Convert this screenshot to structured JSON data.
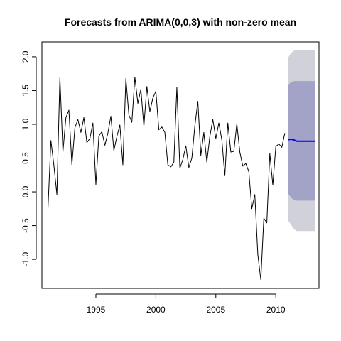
{
  "chart_data": {
    "type": "line",
    "title": "Forecasts from ARIMA(0,0,3) with non-zero mean",
    "xlabel": "",
    "ylabel": "",
    "xlim": [
      1990.5,
      2013.6
    ],
    "ylim": [
      -1.43,
      2.22
    ],
    "x_ticks": [
      1995,
      2000,
      2005,
      2010
    ],
    "y_ticks": [
      -1.0,
      -0.5,
      0.0,
      0.5,
      1.0,
      1.5,
      2.0
    ],
    "x_tick_labels": [
      "1995",
      "2000",
      "2005",
      "2010"
    ],
    "y_tick_labels": [
      "-1.0",
      "-0.5",
      "0.0",
      "0.5",
      "1.0",
      "1.5",
      "2.0"
    ],
    "series": [
      {
        "role": "observed",
        "color": "#000000",
        "start": 1991.0,
        "step": 0.25,
        "values": [
          -0.27,
          0.76,
          0.39,
          -0.04,
          1.7,
          0.59,
          1.1,
          1.21,
          0.4,
          0.95,
          1.07,
          0.88,
          1.1,
          0.73,
          0.79,
          1.02,
          0.11,
          0.83,
          0.89,
          0.69,
          0.87,
          1.12,
          0.61,
          0.82,
          0.99,
          0.4,
          1.68,
          1.14,
          1.03,
          1.7,
          1.31,
          1.52,
          0.97,
          1.56,
          1.19,
          1.39,
          1.49,
          0.92,
          0.96,
          0.88,
          0.4,
          0.37,
          0.44,
          1.55,
          0.35,
          0.48,
          0.68,
          0.36,
          0.5,
          0.98,
          1.34,
          0.54,
          0.88,
          0.44,
          0.82,
          1.07,
          0.79,
          1.02,
          0.77,
          0.24,
          1.02,
          0.59,
          0.6,
          1.01,
          0.59,
          0.38,
          0.42,
          0.3,
          -0.25,
          -0.04,
          -0.93,
          -1.3,
          -0.39,
          -0.46,
          0.57,
          0.1,
          0.67,
          0.71,
          0.66,
          0.87
        ]
      },
      {
        "role": "forecast",
        "color": "#0000ff",
        "x": [
          2011.0,
          2011.25,
          2011.5,
          2011.75,
          2012.0,
          2012.25,
          2012.5,
          2012.75,
          2013.0,
          2013.25
        ],
        "values": [
          0.77,
          0.78,
          0.77,
          0.75,
          0.75,
          0.75,
          0.75,
          0.75,
          0.75,
          0.75
        ]
      }
    ],
    "intervals": [
      {
        "level": "95%",
        "color": "#d1d1d9",
        "x": [
          2011.0,
          2011.25,
          2011.5,
          2011.75,
          2012.0,
          2012.25,
          2012.5,
          2012.75,
          2013.0,
          2013.25
        ],
        "lower": [
          -0.42,
          -0.48,
          -0.55,
          -0.58,
          -0.58,
          -0.58,
          -0.58,
          -0.58,
          -0.58,
          -0.58
        ],
        "upper": [
          1.98,
          2.05,
          2.09,
          2.1,
          2.1,
          2.1,
          2.1,
          2.1,
          2.1,
          2.1
        ]
      },
      {
        "level": "80%",
        "color": "#a3a3c8",
        "x": [
          2011.0,
          2011.25,
          2011.5,
          2011.75,
          2012.0,
          2012.25,
          2012.5,
          2012.75,
          2013.0,
          2013.25
        ],
        "lower": [
          -0.02,
          -0.08,
          -0.12,
          -0.13,
          -0.13,
          -0.13,
          -0.13,
          -0.13,
          -0.13,
          -0.13
        ],
        "upper": [
          1.58,
          1.62,
          1.64,
          1.64,
          1.64,
          1.64,
          1.64,
          1.64,
          1.64,
          1.64
        ]
      }
    ],
    "grid": false,
    "legend": "none"
  }
}
